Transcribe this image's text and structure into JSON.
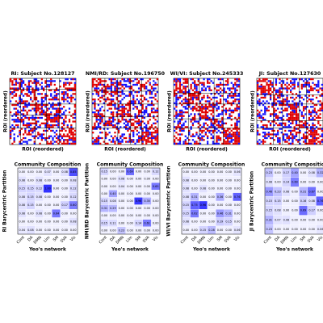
{
  "panels": [
    {
      "title": "RI: Subject No.128127",
      "matrix_xlabel": "ROI (reordered)",
      "matrix_ylabel": "ROI (reordered)",
      "heatmap": {
        "title": "Community Composition",
        "ylabel": "RI Barycentric Partition",
        "xlabel": "Yeo's network",
        "columns": [
          "Cont",
          "DA",
          "DMN",
          "Lim",
          "SM",
          "SVA",
          "Vis"
        ],
        "rows": [
          [
            "0.00",
            "0.00",
            "0.00",
            "0.07",
            "0.00",
            "0.08",
            "0.85"
          ],
          [
            "0.08",
            "0.00",
            "0.08",
            "0.00",
            "0.00",
            "0.00",
            "0.08"
          ],
          [
            "0.15",
            "0.15",
            "0.12",
            "1.00",
            "0.00",
            "0.00",
            "0.12"
          ],
          [
            "0.08",
            "0.15",
            "0.08",
            "0.00",
            "0.00",
            "0.00",
            "0.12"
          ],
          [
            "0.08",
            "0.15",
            "0.00",
            "0.00",
            "0.00",
            "0.17",
            "0.60"
          ],
          [
            "0.08",
            "0.00",
            "0.08",
            "0.00",
            "0.64",
            "0.00",
            "0.00"
          ],
          [
            "0.00",
            "0.00",
            "0.00",
            "0.00",
            "0.00",
            "0.00",
            "0.08"
          ],
          [
            "0.04",
            "0.08",
            "0.00",
            "0.00",
            "0.00",
            "0.00",
            "0.00"
          ]
        ]
      }
    },
    {
      "title": "NMI/RD: Subject No.196750",
      "matrix_xlabel": "ROI (reordered)",
      "matrix_ylabel": "ROI (reordered)",
      "heatmap": {
        "title": "Community Composition",
        "ylabel": "NMI/RD Barycentric Partition",
        "xlabel": "Yeo's network",
        "columns": [
          "Cont",
          "DA",
          "DMN",
          "Lim",
          "SM",
          "SVA",
          "Vis"
        ],
        "rows": [
          [
            "0.15",
            "0.00",
            "0.00",
            "0.69",
            "0.00",
            "0.00",
            "0.12"
          ],
          [
            "0.00",
            "0.00",
            "0.08",
            "0.00",
            "0.00",
            "0.00",
            "0.00"
          ],
          [
            "0.00",
            "0.00",
            "0.04",
            "0.00",
            "0.00",
            "0.00",
            "0.65"
          ],
          [
            "0.00",
            "0.40",
            "0.00",
            "0.00",
            "0.00",
            "0.00",
            "0.00"
          ],
          [
            "0.15",
            "0.08",
            "0.00",
            "0.00",
            "0.96",
            "0.35",
            "0.00"
          ],
          [
            "0.31",
            "0.29",
            "0.00",
            "0.00",
            "0.00",
            "0.00",
            "0.00"
          ],
          [
            "0.00",
            "0.00",
            "0.00",
            "0.00",
            "0.00",
            "0.00",
            "0.00"
          ],
          [
            "0.15",
            "0.11",
            "0.00",
            "0.00",
            "0.14",
            "0.61",
            "0.00"
          ],
          [
            "0.00",
            "0.00",
            "0.23",
            "0.00",
            "0.00",
            "0.00",
            "0.00"
          ]
        ]
      }
    },
    {
      "title": "WI/VI: Subject No.245333",
      "matrix_xlabel": "ROI (reordered)",
      "matrix_ylabel": "ROI (reordered)",
      "heatmap": {
        "title": "Community Composition",
        "ylabel": "WI/VI Barycentric Partition",
        "xlabel": "Yeo's network",
        "columns": [
          "Cont",
          "DA",
          "DMN",
          "Lim",
          "SM",
          "SVA",
          "Vis"
        ],
        "rows": [
          [
            "0.00",
            "0.00",
            "0.00",
            "0.00",
            "0.00",
            "0.00",
            "0.06"
          ],
          [
            "0.08",
            "0.00",
            "0.00",
            "0.00",
            "0.00",
            "0.00",
            "0.00"
          ],
          [
            "0.08",
            "0.00",
            "0.08",
            "0.00",
            "0.00",
            "0.00",
            "0.00"
          ],
          [
            "0.08",
            "0.31",
            "0.00",
            "0.00",
            "0.36",
            "0.00",
            "0.76"
          ],
          [
            "0.15",
            "0.75",
            "0.96",
            "0.00",
            "0.00",
            "0.00",
            "0.00"
          ],
          [
            "0.15",
            "0.62",
            "0.00",
            "0.00",
            "0.46",
            "0.31",
            "0.00"
          ],
          [
            "0.08",
            "0.00",
            "0.00",
            "0.00",
            "0.19",
            "0.15",
            "0.00"
          ],
          [
            "0.00",
            "0.00",
            "0.15",
            "0.28",
            "0.00",
            "0.00",
            "0.06"
          ]
        ]
      }
    },
    {
      "title": "JI: Subject No.127630",
      "matrix_xlabel": "ROI (reordered)",
      "matrix_ylabel": "ROI (reordered)",
      "heatmap": {
        "title": "Community Composition",
        "ylabel": "JI Barycentric Partition",
        "xlabel": "Yeo's network",
        "columns": [
          "Cont",
          "DA",
          "DMN",
          "Lim",
          "SM",
          "SVA",
          "Vis"
        ],
        "rows": [
          [
            "0.23",
            "0.00",
            "0.17",
            "0.40",
            "0.00",
            "0.08",
            "0.32"
          ],
          [
            "0.08",
            "0.00",
            "0.14",
            "0.60",
            "0.00",
            "0.00",
            "0.00"
          ],
          [
            "0.46",
            "0.23",
            "0.08",
            "0.00",
            "0.31",
            "0.67",
            "0.00"
          ],
          [
            "0.15",
            "0.15",
            "0.00",
            "0.00",
            "0.16",
            "0.08",
            "0.76"
          ],
          [
            "0.15",
            "0.08",
            "0.00",
            "0.00",
            "0.69",
            "0.17",
            "0.00"
          ],
          [
            "0.31",
            "0.07",
            "0.08",
            "0.00",
            "0.00",
            "0.00",
            "0.00"
          ],
          [
            "0.23",
            "0.00",
            "0.00",
            "0.00",
            "0.00",
            "0.00",
            "0.06"
          ]
        ]
      }
    }
  ]
}
